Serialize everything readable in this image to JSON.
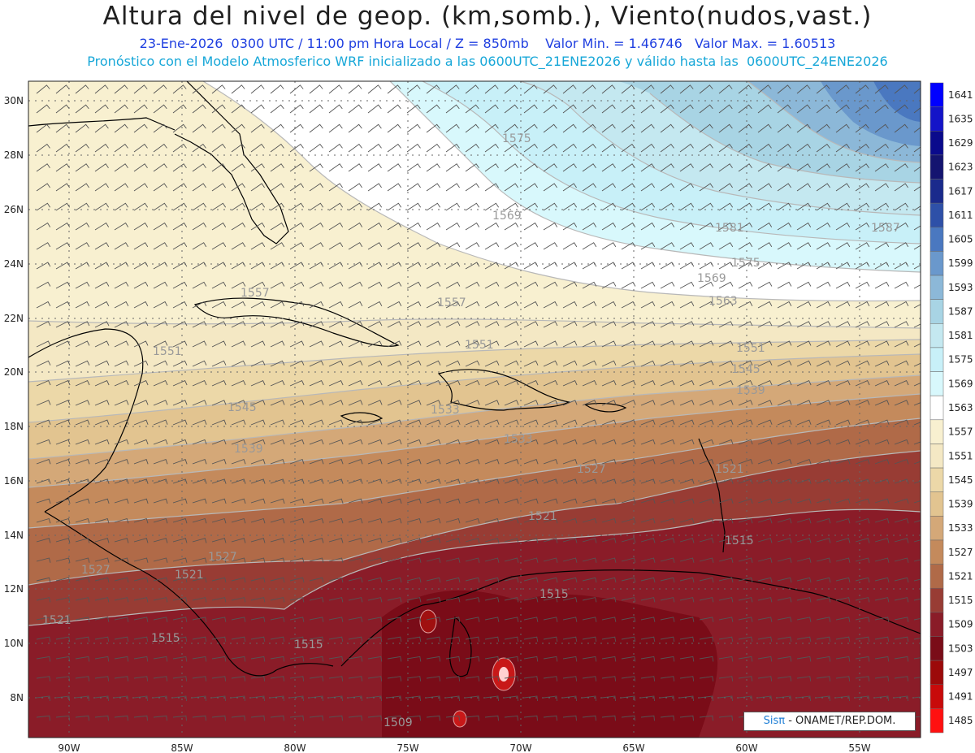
{
  "header": {
    "title": "Altura del nivel de geop. (km,somb.), Viento(nudos,vast.)",
    "subtitle": "23-Ene-2026  0300 UTC / 11:00 pm Hora Local / Z = 850mb    Valor Min. = 1.46746   Valor Max. = 1.60513",
    "subtitle2": "Pronóstico con el Modelo Atmosferico WRF inicializado a las 0600UTC_21ENE2026 y válido hasta las  0600UTC_24ENE2026"
  },
  "axes": {
    "lat_labels": [
      "30N",
      "28N",
      "26N",
      "24N",
      "22N",
      "20N",
      "18N",
      "16N",
      "14N",
      "12N",
      "10N",
      "8N"
    ],
    "lon_labels": [
      "90W",
      "85W",
      "80W",
      "75W",
      "70W",
      "65W",
      "60W",
      "55W"
    ]
  },
  "colorbar": {
    "levels": [
      "1641",
      "1635",
      "1629",
      "1623",
      "1617",
      "1611",
      "1605",
      "1599",
      "1593",
      "1587",
      "1581",
      "1575",
      "1569",
      "1563",
      "1557",
      "1551",
      "1545",
      "1539",
      "1533",
      "1527",
      "1521",
      "1515",
      "1509",
      "1503",
      "1497",
      "1491",
      "1485"
    ],
    "colors": [
      "#0000ff",
      "#1414c8",
      "#0a0a8c",
      "#141470",
      "#1a2a8c",
      "#2e50a8",
      "#4a78c0",
      "#6a98cc",
      "#8cb8d8",
      "#a8d4e4",
      "#c4e8f0",
      "#c8f0f8",
      "#d8f8fc",
      "#ffffff",
      "#f8f0d0",
      "#f4e8c4",
      "#ecd8a8",
      "#e2c490",
      "#d4a878",
      "#c48a5c",
      "#b06a48",
      "#983c34",
      "#8a1c28",
      "#7a0c18",
      "#9c0a0a",
      "#c80a0a",
      "#ff1010"
    ]
  },
  "contour_labels": [
    "1575",
    "1569",
    "1581",
    "1587",
    "1575",
    "1569",
    "1563",
    "1557",
    "1557",
    "1551",
    "1551",
    "1551",
    "1545",
    "1545",
    "1539",
    "1539",
    "1533",
    "1533",
    "1527",
    "1527",
    "1527",
    "1521",
    "1521",
    "1521",
    "1521",
    "1515",
    "1515",
    "1515",
    "1515",
    "1509"
  ],
  "credit": {
    "sis": "Sisπ",
    "rest": " - ONAMET/REP.DOM."
  }
}
